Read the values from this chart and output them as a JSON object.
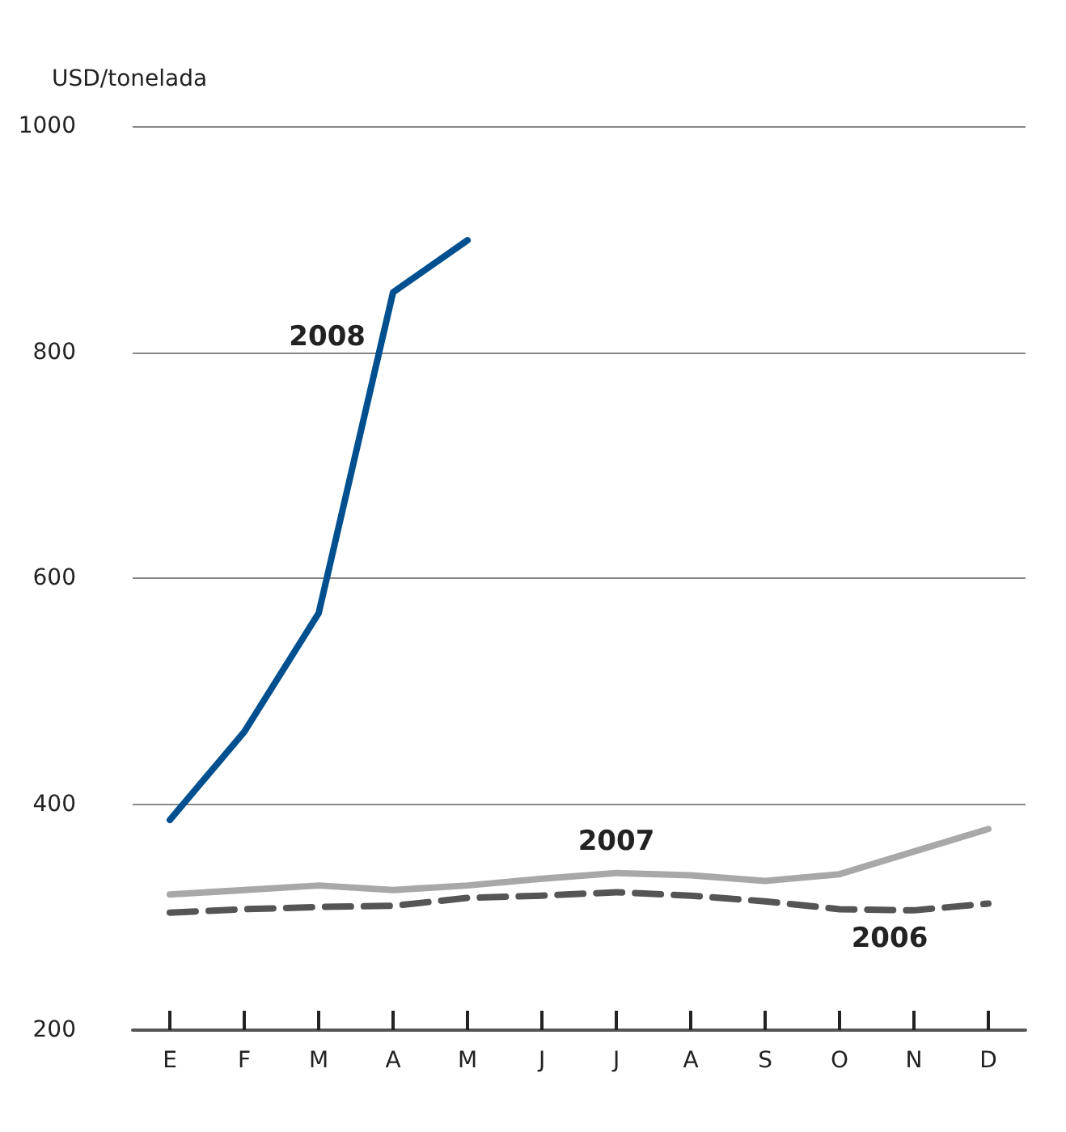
{
  "chart_data": {
    "type": "line",
    "ylabel": "USD/tonelada",
    "categories": [
      "E",
      "F",
      "M",
      "A",
      "M",
      "J",
      "J",
      "A",
      "S",
      "O",
      "N",
      "D"
    ],
    "ylim": [
      200,
      1000
    ],
    "yticks": [
      200,
      400,
      600,
      800,
      1000
    ],
    "grid": "y",
    "legend": false,
    "marker": "none",
    "series": [
      {
        "name": "2008",
        "color": "#00508f",
        "line_style": "solid",
        "values": [
          386,
          464,
          569,
          853,
          899,
          null,
          null,
          null,
          null,
          null,
          null,
          null
        ]
      },
      {
        "name": "2007",
        "color": "#a8a8a8",
        "line_style": "solid",
        "values": [
          320,
          324,
          328,
          324,
          328,
          334,
          339,
          337,
          332,
          338,
          358,
          378
        ]
      },
      {
        "name": "2006",
        "color": "#555555",
        "line_style": "dashed",
        "values": [
          304,
          307,
          309,
          310,
          317,
          319,
          322,
          319,
          314,
          307,
          306,
          312
        ]
      }
    ]
  }
}
